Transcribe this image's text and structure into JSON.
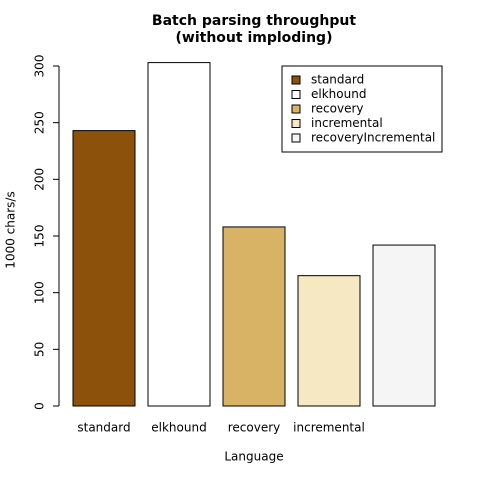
{
  "chart_data": {
    "type": "bar",
    "title": "Batch parsing throughput",
    "subtitle": "(without imploding)",
    "x_label": "Language",
    "y_label": "1000 chars/s",
    "categories": [
      "standard",
      "elkhound",
      "recovery",
      "incremental",
      null
    ],
    "values": [
      243,
      303,
      158,
      115,
      142
    ],
    "colors": [
      "#8c510a",
      "#ffffff",
      "#d8b365",
      "#f6e8c3",
      "#f5f5f5"
    ],
    "legend": [
      "standard",
      "elkhound",
      "recovery",
      "incremental",
      "recoveryIncremental"
    ],
    "legend_position": "top-right",
    "ylim": [
      0,
      300
    ],
    "yticks": [
      0,
      50,
      100,
      150,
      200,
      250,
      300
    ]
  }
}
